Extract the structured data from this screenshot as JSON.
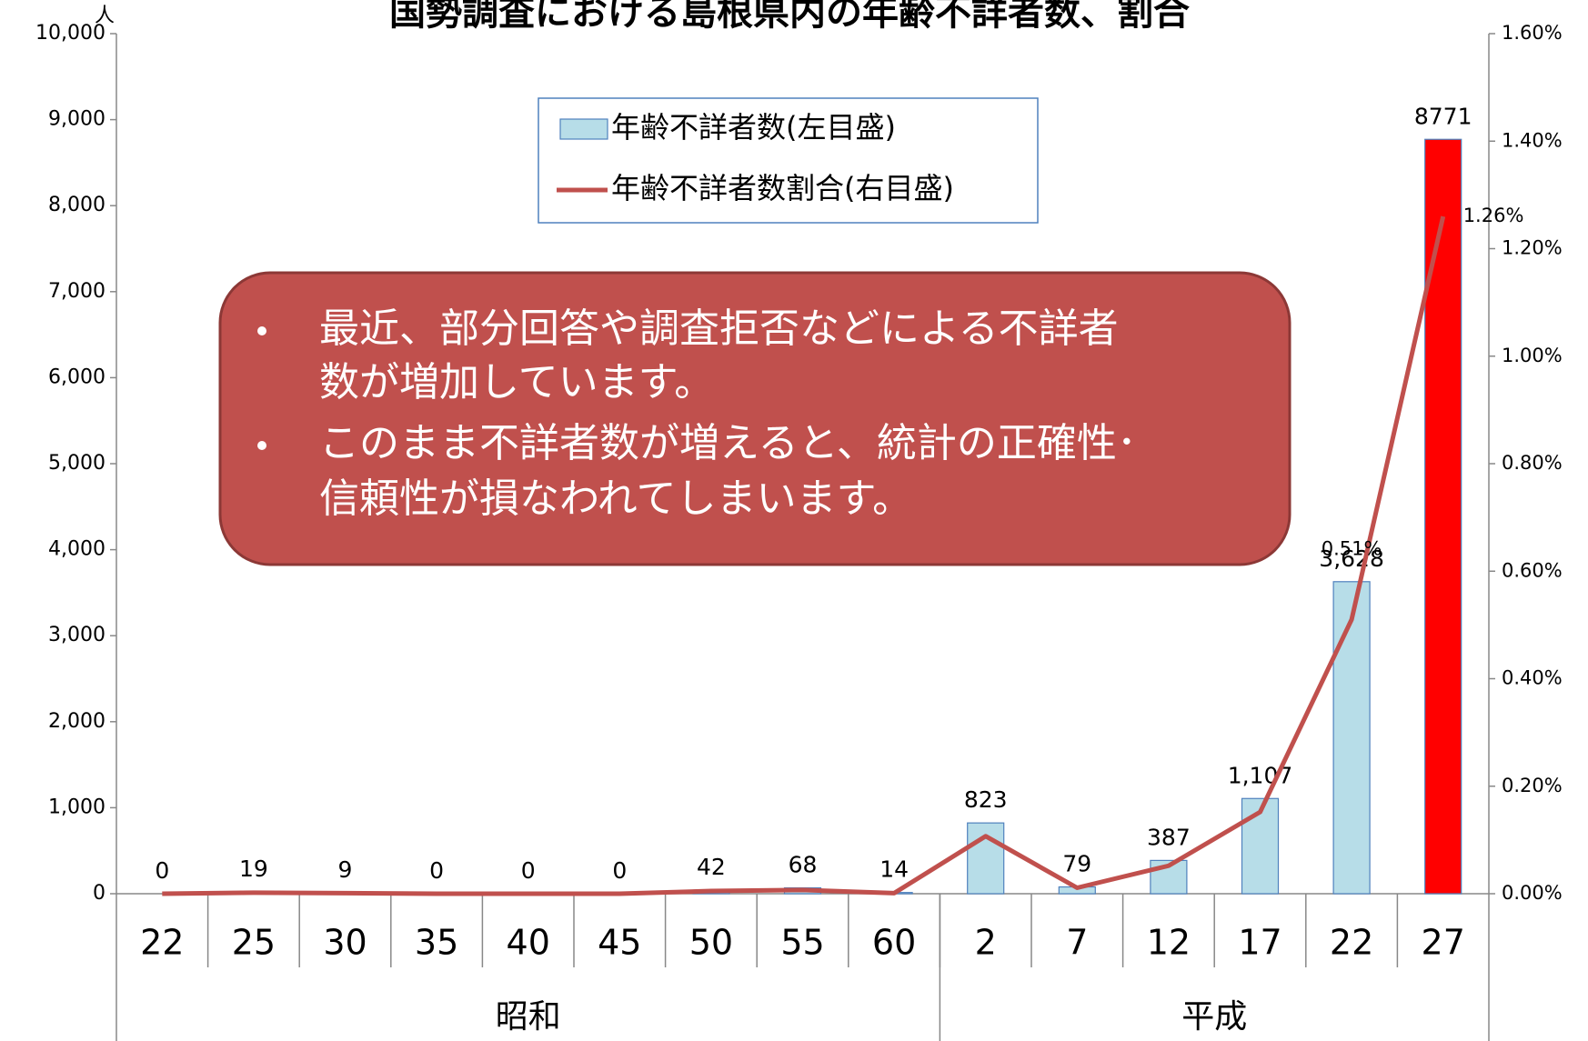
{
  "chart_data": {
    "type": "bar_line",
    "title": "国勢調査における島根県内の年齢不詳者数、割合",
    "y_unit": "人",
    "groups": [
      {
        "label": "昭和",
        "categories": [
          "22",
          "25",
          "30",
          "35",
          "40",
          "45",
          "50",
          "55",
          "60"
        ]
      },
      {
        "label": "平成",
        "categories": [
          "2",
          "7",
          "12",
          "17",
          "22",
          "27"
        ]
      }
    ],
    "series": [
      {
        "name": "年齢不詳者数(左目盛)",
        "type": "bar",
        "color": "#b7dde8",
        "edge_color": "#4f81bd",
        "colors": [
          "#b7dde8",
          "#b7dde8",
          "#b7dde8",
          "#b7dde8",
          "#b7dde8",
          "#b7dde8",
          "#b7dde8",
          "#b7dde8",
          "#b7dde8",
          "#b7dde8",
          "#b7dde8",
          "#b7dde8",
          "#b7dde8",
          "#b7dde8",
          "#ff0000"
        ],
        "values": [
          0,
          19,
          9,
          0,
          0,
          0,
          42,
          68,
          14,
          823,
          79,
          387,
          1107,
          3628,
          8771
        ],
        "value_labels": [
          "0",
          "19",
          "9",
          "0",
          "0",
          "0",
          "42",
          "68",
          "14",
          "823",
          "79",
          "387",
          "1,107",
          "3,628",
          "8771"
        ]
      },
      {
        "name": "年齢不詳者数割合(右目盛)",
        "type": "line",
        "axis": "y2",
        "color": "#c0504d",
        "values": [
          0,
          0.002,
          0.001,
          0,
          0,
          0,
          0.005,
          0.007,
          0.001,
          0.107,
          0.011,
          0.052,
          0.152,
          0.51,
          1.26
        ],
        "value_labels": [
          null,
          null,
          null,
          null,
          null,
          null,
          null,
          null,
          null,
          null,
          null,
          null,
          null,
          "0.51%",
          "1.26%"
        ]
      }
    ],
    "ylim": [
      0,
      10000
    ],
    "yticks": [
      {
        "value": 0,
        "label": "0"
      },
      {
        "value": 1000,
        "label": "1,000"
      },
      {
        "value": 2000,
        "label": "2,000"
      },
      {
        "value": 3000,
        "label": "3,000"
      },
      {
        "value": 4000,
        "label": "4,000"
      },
      {
        "value": 5000,
        "label": "5,000"
      },
      {
        "value": 6000,
        "label": "6,000"
      },
      {
        "value": 7000,
        "label": "7,000"
      },
      {
        "value": 8000,
        "label": "8,000"
      },
      {
        "value": 9000,
        "label": "9,000"
      },
      {
        "value": 10000,
        "label": "10,000"
      }
    ],
    "y2lim": [
      0,
      1.6
    ],
    "y2ticks": [
      {
        "value": 0,
        "label": "0.00%"
      },
      {
        "value": 0.2,
        "label": "0.20%"
      },
      {
        "value": 0.4,
        "label": "0.40%"
      },
      {
        "value": 0.6,
        "label": "0.60%"
      },
      {
        "value": 0.8,
        "label": "0.80%"
      },
      {
        "value": 1.0,
        "label": "1.00%"
      },
      {
        "value": 1.2,
        "label": "1.20%"
      },
      {
        "value": 1.4,
        "label": "1.40%"
      },
      {
        "value": 1.6,
        "label": "1.60%"
      }
    ],
    "callout": [
      [
        "最近、部分回答や調査拒否などによる不詳者",
        "数が増加しています。"
      ],
      [
        "このまま不詳者数が増えると、統計の正確性･",
        "信頼性が損なわれてしまいます。"
      ]
    ]
  }
}
